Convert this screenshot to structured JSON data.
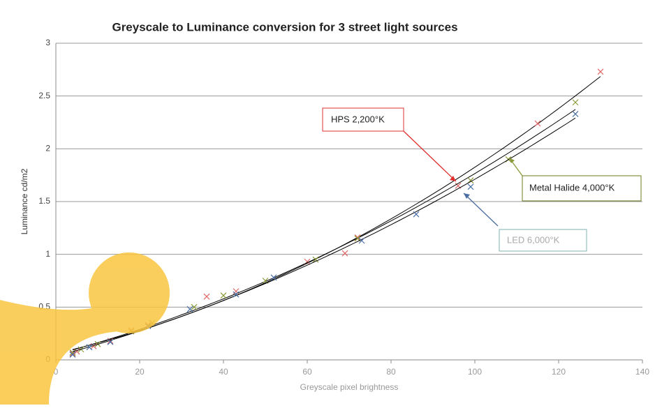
{
  "chart_data": {
    "type": "scatter",
    "title": "Greyscale to Luminance conversion for 3 street light sources",
    "x_label": "Greyscale pixel brightness",
    "y_label": "Luminance cd/m2",
    "xlim": [
      0,
      140
    ],
    "xticks": [
      0,
      20,
      40,
      60,
      80,
      100,
      120,
      140
    ],
    "ylim": [
      0,
      3
    ],
    "yticks": [
      0,
      0.5,
      1,
      1.5,
      2,
      2.5,
      3
    ],
    "grid": true,
    "trendline": "polynomial",
    "trendline_color": "#000000",
    "series": [
      {
        "name": "HPS",
        "color": "#e06666",
        "x": [
          4,
          5,
          9,
          13,
          18,
          22,
          36,
          43,
          60,
          69,
          72,
          96,
          115,
          130
        ],
        "values": [
          0.06,
          0.08,
          0.13,
          0.18,
          0.28,
          0.33,
          0.6,
          0.65,
          0.93,
          1.01,
          1.16,
          1.65,
          2.24,
          2.73
        ]
      },
      {
        "name": "Metal Halide",
        "color": "#8a9a3a",
        "x": [
          4,
          6,
          10,
          18,
          23,
          33,
          40,
          50,
          62,
          72,
          99,
          108,
          124
        ],
        "values": [
          0.07,
          0.1,
          0.15,
          0.27,
          0.35,
          0.5,
          0.61,
          0.75,
          0.95,
          1.15,
          1.7,
          1.9,
          2.44
        ]
      },
      {
        "name": "LED",
        "color": "#4a6fa5",
        "x": [
          4,
          8,
          13,
          22,
          32,
          43,
          52,
          73,
          86,
          99,
          124
        ],
        "values": [
          0.05,
          0.12,
          0.17,
          0.32,
          0.48,
          0.62,
          0.78,
          1.13,
          1.38,
          1.64,
          2.33
        ]
      }
    ],
    "annotations": [
      {
        "text": "HPS  2,200°K",
        "color": "#e03030"
      },
      {
        "text": "Metal Halide  4,000°K",
        "color": "#6b7d1e"
      },
      {
        "text": "LED 6,000°K",
        "color": "#7fb3b0"
      }
    ]
  }
}
